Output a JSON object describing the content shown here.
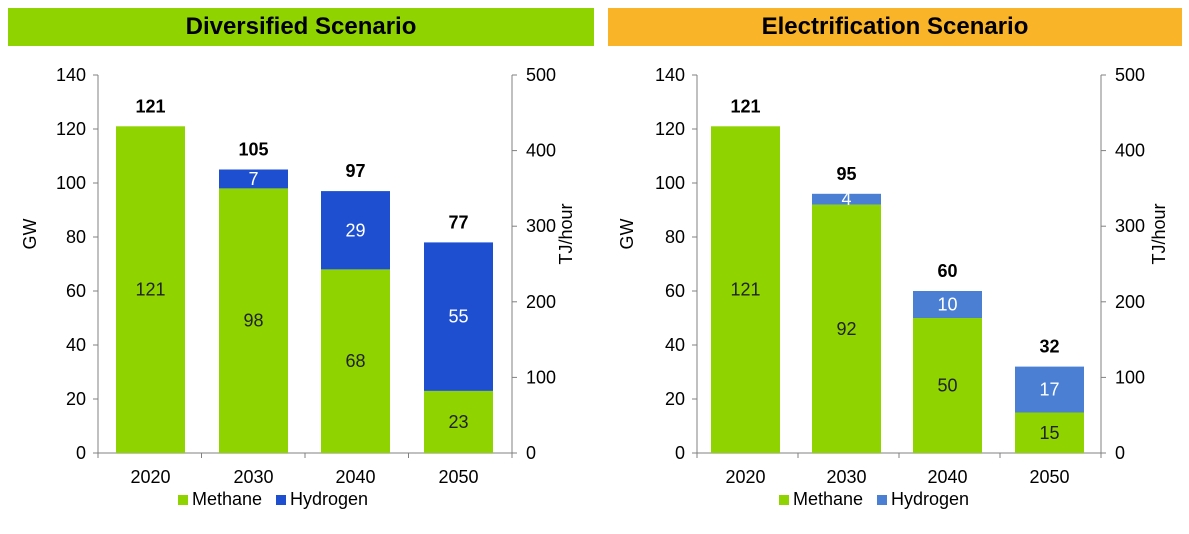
{
  "chart_data": [
    {
      "type": "bar",
      "stacked": true,
      "title": "Diversified Scenario",
      "title_bg": "#8fd400",
      "categories": [
        "2020",
        "2030",
        "2040",
        "2050"
      ],
      "series": [
        {
          "name": "Methane",
          "color": "#8fd400",
          "values": [
            121,
            98,
            68,
            23
          ],
          "labels": [
            "121",
            "98",
            "68",
            "23"
          ]
        },
        {
          "name": "Hydrogen",
          "color": "#1f4fd1",
          "values": [
            0,
            7,
            29,
            55
          ],
          "labels": [
            "",
            "7",
            "29",
            "55"
          ]
        }
      ],
      "totals": [
        "121",
        "105",
        "97",
        "77"
      ],
      "ylabel": "GW",
      "y2label": "TJ/hour",
      "ylim": [
        0,
        140
      ],
      "yticks": [
        "0",
        "20",
        "40",
        "60",
        "80",
        "100",
        "120",
        "140"
      ],
      "y2lim": [
        0,
        500
      ],
      "y2ticks": [
        "0",
        "100",
        "200",
        "300",
        "400",
        "500"
      ],
      "legend_position": "bottom",
      "grid": false
    },
    {
      "type": "bar",
      "stacked": true,
      "title": "Electrification Scenario",
      "title_bg": "#f9b428",
      "categories": [
        "2020",
        "2030",
        "2040",
        "2050"
      ],
      "series": [
        {
          "name": "Methane",
          "color": "#8fd400",
          "values": [
            121,
            92,
            50,
            15
          ],
          "labels": [
            "121",
            "92",
            "50",
            "15"
          ]
        },
        {
          "name": "Hydrogen",
          "color": "#4a7fd4",
          "values": [
            0,
            4,
            10,
            17
          ],
          "labels": [
            "",
            "4",
            "10",
            "17"
          ]
        }
      ],
      "totals": [
        "121",
        "95",
        "60",
        "32"
      ],
      "ylabel": "GW",
      "y2label": "TJ/hour",
      "ylim": [
        0,
        140
      ],
      "yticks": [
        "0",
        "20",
        "40",
        "60",
        "80",
        "100",
        "120",
        "140"
      ],
      "y2lim": [
        0,
        500
      ],
      "y2ticks": [
        "0",
        "100",
        "200",
        "300",
        "400",
        "500"
      ],
      "legend_position": "bottom",
      "grid": false
    }
  ]
}
